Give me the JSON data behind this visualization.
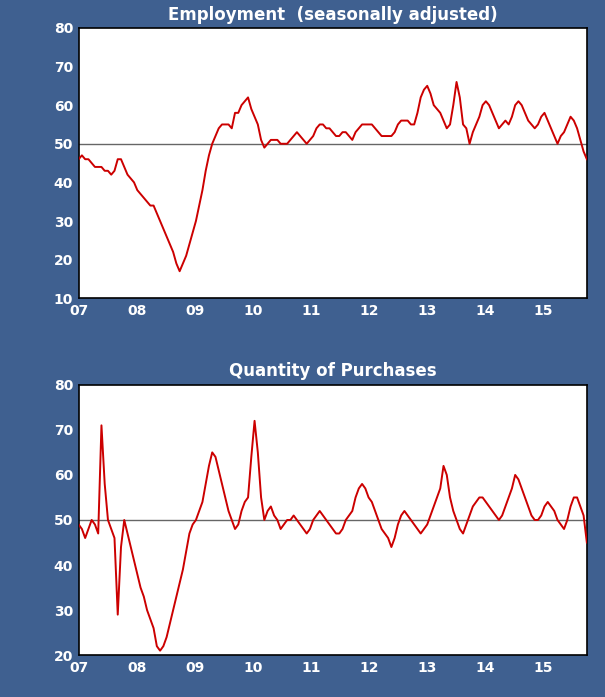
{
  "title1": "Employment  (seasonally adjusted)",
  "title2": "Quantity of Purchases",
  "bg_color": "#3F6090",
  "line_color": "#CC0000",
  "text_color": "#FFFFFF",
  "ylim1": [
    10,
    80
  ],
  "ylim2": [
    20,
    80
  ],
  "yticks1": [
    10,
    20,
    30,
    40,
    50,
    60,
    70,
    80
  ],
  "yticks2": [
    20,
    30,
    40,
    50,
    60,
    70,
    80
  ],
  "hline_y": 50,
  "xticklabels": [
    "07",
    "08",
    "09",
    "10",
    "11",
    "12",
    "13",
    "14",
    "15"
  ],
  "xtick_positions": [
    2007,
    2008,
    2009,
    2010,
    2011,
    2012,
    2013,
    2014,
    2015
  ],
  "xlim": [
    2007,
    2015.75
  ],
  "employment": [
    46,
    47,
    46,
    46,
    45,
    44,
    44,
    44,
    43,
    43,
    42,
    43,
    46,
    46,
    44,
    42,
    41,
    40,
    38,
    37,
    36,
    35,
    34,
    34,
    32,
    30,
    28,
    26,
    24,
    22,
    19,
    17,
    19,
    21,
    24,
    27,
    30,
    34,
    38,
    43,
    47,
    50,
    52,
    54,
    55,
    55,
    55,
    54,
    58,
    58,
    60,
    61,
    62,
    59,
    57,
    55,
    51,
    49,
    50,
    51,
    51,
    51,
    50,
    50,
    50,
    51,
    52,
    53,
    52,
    51,
    50,
    51,
    52,
    54,
    55,
    55,
    54,
    54,
    53,
    52,
    52,
    53,
    53,
    52,
    51,
    53,
    54,
    55,
    55,
    55,
    55,
    54,
    53,
    52,
    52,
    52,
    52,
    53,
    55,
    56,
    56,
    56,
    55,
    55,
    58,
    62,
    64,
    65,
    63,
    60,
    59,
    58,
    56,
    54,
    55,
    60,
    66,
    62,
    55,
    54,
    50,
    53,
    55,
    57,
    60,
    61,
    60,
    58,
    56,
    54,
    55,
    56,
    55,
    57,
    60,
    61,
    60,
    58,
    56,
    55,
    54,
    55,
    57,
    58,
    56,
    54,
    52,
    50,
    52,
    53,
    55,
    57,
    56,
    54,
    51,
    48,
    46
  ],
  "purchases": [
    49,
    48,
    46,
    48,
    50,
    49,
    47,
    71,
    58,
    50,
    48,
    46,
    29,
    44,
    50,
    47,
    44,
    41,
    38,
    35,
    33,
    30,
    28,
    26,
    22,
    21,
    22,
    24,
    27,
    30,
    33,
    36,
    39,
    43,
    47,
    49,
    50,
    52,
    54,
    58,
    62,
    65,
    64,
    61,
    58,
    55,
    52,
    50,
    48,
    49,
    52,
    54,
    55,
    64,
    72,
    65,
    55,
    50,
    52,
    53,
    51,
    50,
    48,
    49,
    50,
    50,
    51,
    50,
    49,
    48,
    47,
    48,
    50,
    51,
    52,
    51,
    50,
    49,
    48,
    47,
    47,
    48,
    50,
    51,
    52,
    55,
    57,
    58,
    57,
    55,
    54,
    52,
    50,
    48,
    47,
    46,
    44,
    46,
    49,
    51,
    52,
    51,
    50,
    49,
    48,
    47,
    48,
    49,
    51,
    53,
    55,
    57,
    62,
    60,
    55,
    52,
    50,
    48,
    47,
    49,
    51,
    53,
    54,
    55,
    55,
    54,
    53,
    52,
    51,
    50,
    51,
    53,
    55,
    57,
    60,
    59,
    57,
    55,
    53,
    51,
    50,
    50,
    51,
    53,
    54,
    53,
    52,
    50,
    49,
    48,
    50,
    53,
    55,
    55,
    53,
    51,
    45
  ]
}
